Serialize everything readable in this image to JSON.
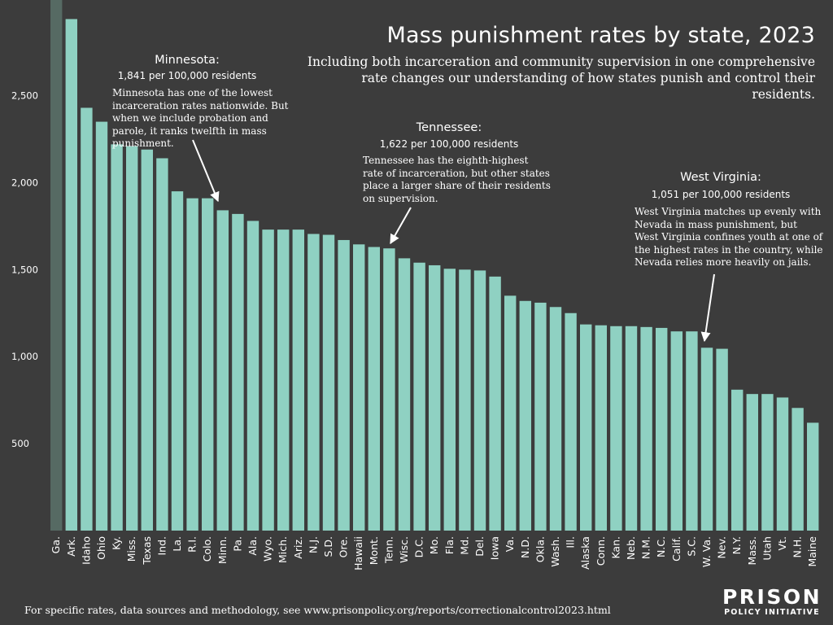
{
  "colors": {
    "background": "#3c3c3c",
    "bar": "#8fd1c2",
    "text": "#ffffff",
    "accent_bar": "#566a63"
  },
  "title": "Mass punishment rates by state, 2023",
  "subtitle": "Including both incarceration and community supervision in one comprehensive rate changes our understanding of how states punish and control their residents.",
  "annotations": {
    "minnesota": {
      "heading": "Minnesota:",
      "rate": "1,841 per 100,000 residents",
      "body": "Minnesota has one of the lowest incarceration rates nationwide. But when we include probation and parole, it ranks twelfth in mass punishment."
    },
    "tennessee": {
      "heading": "Tennessee:",
      "rate": "1,622 per 100,000 residents",
      "body": "Tennessee has the eighth-highest rate of incarceration, but other states place a larger share of their residents on supervision."
    },
    "west_virginia": {
      "heading": "West Virginia:",
      "rate": "1,051 per 100,000 residents",
      "body": "West Virginia matches up evenly with Nevada in mass punishment, but West Virginia confines youth at one of the highest rates in the country, while Nevada relies more heavily on jails."
    }
  },
  "footer": "For specific rates, data sources and methodology, see www.prisonpolicy.org/reports/correctionalcontrol2023.html",
  "logo": {
    "top": "PRISON",
    "bottom": "POLICY INITIATIVE"
  },
  "chart_data": {
    "type": "bar",
    "title": "Mass punishment rates by state, 2023",
    "xlabel": "",
    "ylabel": "",
    "ylim": [
      0,
      3050
    ],
    "yticks": [
      500,
      1000,
      1500,
      2000,
      2500
    ],
    "ytick_labels": [
      "500",
      "1,000",
      "1,500",
      "2,000",
      "2,500"
    ],
    "grid": false,
    "categories": [
      "Ga.",
      "Ark.",
      "Idaho",
      "Ohio",
      "Ky.",
      "Miss.",
      "Texas",
      "Ind.",
      "La.",
      "R.I.",
      "Colo.",
      "Minn.",
      "Pa.",
      "Ala.",
      "Wyo.",
      "Mich.",
      "Ariz.",
      "N.J.",
      "S.D.",
      "Ore.",
      "Hawaii",
      "Mont.",
      "Tenn.",
      "Wisc.",
      "D.C.",
      "Mo.",
      "Fla.",
      "Md.",
      "Del.",
      "Iowa",
      "Va.",
      "N.D.",
      "Okla.",
      "Wash.",
      "Ill.",
      "Alaska",
      "Conn.",
      "Kan.",
      "Neb.",
      "N.M.",
      "N.C.",
      "Calif.",
      "S.C.",
      "W. Va.",
      "Nev.",
      "N.Y.",
      "Mass.",
      "Utah",
      "Vt.",
      "N.H.",
      "Maine"
    ],
    "values": [
      3050,
      2940,
      2430,
      2350,
      2220,
      2210,
      2190,
      2140,
      1950,
      1910,
      1910,
      1841,
      1820,
      1780,
      1730,
      1730,
      1730,
      1705,
      1700,
      1670,
      1645,
      1630,
      1622,
      1565,
      1540,
      1525,
      1505,
      1500,
      1495,
      1460,
      1350,
      1320,
      1310,
      1285,
      1250,
      1185,
      1180,
      1175,
      1175,
      1170,
      1165,
      1145,
      1145,
      1051,
      1045,
      810,
      785,
      785,
      765,
      705,
      620
    ]
  }
}
